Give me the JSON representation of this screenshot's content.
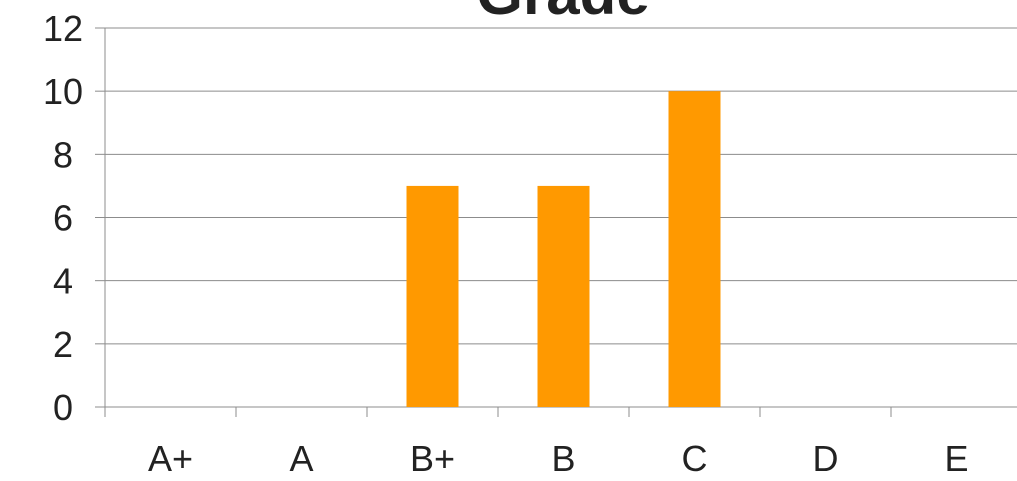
{
  "chart_data": {
    "type": "bar",
    "title": "Grade",
    "categories": [
      "A+",
      "A",
      "B+",
      "B",
      "C",
      "D",
      "E"
    ],
    "values": [
      0,
      0,
      7,
      7,
      10,
      0,
      0
    ],
    "ylim": [
      0,
      12
    ],
    "yticks": [
      0,
      2,
      4,
      6,
      8,
      10,
      12
    ],
    "xlabel": "",
    "ylabel": "",
    "grid": true,
    "legend": "none",
    "colors": {
      "bar": "#FF9900",
      "gridline": "#8C8C8C",
      "axis": "#8C8C8C",
      "text": "#222222"
    }
  }
}
